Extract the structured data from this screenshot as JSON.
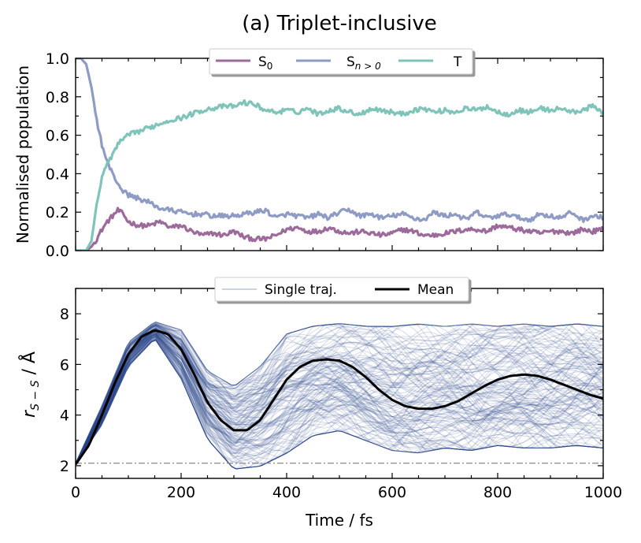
{
  "figure_title": "(a) Triplet-inclusive",
  "xlabel": "Time / fs",
  "chart_data": [
    {
      "type": "line",
      "title": "(a) Triplet-inclusive",
      "ylabel": "Normalised population",
      "xlim": [
        0,
        1000
      ],
      "ylim": [
        0,
        1.0
      ],
      "yticks": [
        0.0,
        0.2,
        0.4,
        0.6,
        0.8,
        1.0
      ],
      "ytick_labels": [
        "0.0",
        "0.2",
        "0.4",
        "0.6",
        "0.8",
        "1.0"
      ],
      "legend_loc": "top-center",
      "series": [
        {
          "name": "S0",
          "label_main": "S",
          "label_sub": "0",
          "color": "#9c6b9c",
          "x": [
            0,
            10,
            20,
            30,
            40,
            50,
            60,
            70,
            80,
            90,
            100,
            120,
            140,
            160,
            180,
            200,
            220,
            240,
            260,
            280,
            300,
            320,
            340,
            360,
            380,
            400,
            420,
            440,
            460,
            480,
            500,
            520,
            540,
            560,
            580,
            600,
            620,
            640,
            660,
            680,
            700,
            720,
            740,
            760,
            780,
            800,
            820,
            840,
            860,
            880,
            900,
            920,
            940,
            960,
            980,
            1000
          ],
          "values": [
            0,
            0,
            0,
            0.02,
            0.06,
            0.11,
            0.15,
            0.18,
            0.21,
            0.19,
            0.15,
            0.13,
            0.13,
            0.15,
            0.12,
            0.13,
            0.1,
            0.08,
            0.09,
            0.08,
            0.1,
            0.07,
            0.06,
            0.06,
            0.08,
            0.11,
            0.12,
            0.1,
            0.1,
            0.12,
            0.1,
            0.09,
            0.1,
            0.09,
            0.08,
            0.09,
            0.11,
            0.1,
            0.08,
            0.08,
            0.09,
            0.1,
            0.11,
            0.11,
            0.1,
            0.13,
            0.12,
            0.11,
            0.1,
            0.09,
            0.1,
            0.1,
            0.09,
            0.11,
            0.1,
            0.11
          ]
        },
        {
          "name": "Sn>0",
          "label_main": "S",
          "label_sub": "n > 0",
          "color": "#8e9bc4",
          "x": [
            0,
            10,
            20,
            30,
            40,
            50,
            60,
            70,
            80,
            90,
            100,
            120,
            140,
            160,
            180,
            200,
            220,
            240,
            260,
            280,
            300,
            320,
            340,
            360,
            380,
            400,
            420,
            440,
            460,
            480,
            500,
            520,
            540,
            560,
            580,
            600,
            620,
            640,
            660,
            680,
            700,
            720,
            740,
            760,
            780,
            800,
            820,
            840,
            860,
            880,
            900,
            920,
            940,
            960,
            980,
            1000
          ],
          "values": [
            1,
            1,
            0.97,
            0.85,
            0.68,
            0.55,
            0.46,
            0.4,
            0.35,
            0.31,
            0.29,
            0.27,
            0.25,
            0.22,
            0.21,
            0.2,
            0.19,
            0.19,
            0.18,
            0.18,
            0.18,
            0.19,
            0.2,
            0.21,
            0.17,
            0.19,
            0.18,
            0.17,
            0.19,
            0.17,
            0.2,
            0.21,
            0.18,
            0.19,
            0.17,
            0.18,
            0.19,
            0.17,
            0.16,
            0.2,
            0.18,
            0.19,
            0.16,
            0.2,
            0.17,
            0.18,
            0.19,
            0.17,
            0.16,
            0.19,
            0.18,
            0.17,
            0.2,
            0.16,
            0.18,
            0.17
          ]
        },
        {
          "name": "T",
          "label_main": "T",
          "label_sub": "",
          "color": "#7fc4b9",
          "x": [
            0,
            10,
            20,
            30,
            40,
            50,
            60,
            70,
            80,
            90,
            100,
            120,
            140,
            160,
            180,
            200,
            220,
            240,
            260,
            280,
            300,
            320,
            340,
            360,
            380,
            400,
            420,
            440,
            460,
            480,
            500,
            520,
            540,
            560,
            580,
            600,
            620,
            640,
            660,
            680,
            700,
            720,
            740,
            760,
            780,
            800,
            820,
            840,
            860,
            880,
            900,
            920,
            940,
            960,
            980,
            1000
          ],
          "values": [
            0,
            0,
            0,
            0.05,
            0.24,
            0.38,
            0.45,
            0.5,
            0.55,
            0.58,
            0.6,
            0.62,
            0.64,
            0.66,
            0.68,
            0.69,
            0.71,
            0.73,
            0.74,
            0.75,
            0.75,
            0.77,
            0.76,
            0.73,
            0.72,
            0.73,
            0.72,
            0.74,
            0.71,
            0.73,
            0.74,
            0.72,
            0.71,
            0.74,
            0.73,
            0.72,
            0.71,
            0.73,
            0.74,
            0.72,
            0.73,
            0.72,
            0.74,
            0.73,
            0.75,
            0.72,
            0.71,
            0.73,
            0.72,
            0.74,
            0.73,
            0.74,
            0.72,
            0.73,
            0.75,
            0.72
          ]
        }
      ]
    },
    {
      "type": "line",
      "ylabel": "r",
      "ylabel_sub": "S − S",
      "ylabel_unit": " / Å",
      "xlim": [
        0,
        1000
      ],
      "ylim": [
        1.5,
        9.0
      ],
      "xticks": [
        0,
        200,
        400,
        600,
        800,
        1000
      ],
      "xtick_labels": [
        "0",
        "200",
        "400",
        "600",
        "800",
        "1000"
      ],
      "yticks": [
        2,
        4,
        6,
        8
      ],
      "ytick_labels": [
        "2",
        "4",
        "6",
        "8"
      ],
      "legend_loc": "top-center",
      "reference_line": {
        "y": 2.1,
        "style": "dash-dot",
        "color": "#888888"
      },
      "series": [
        {
          "name": "Mean",
          "label": "Mean",
          "color": "#000000",
          "x": [
            0,
            25,
            50,
            75,
            100,
            125,
            150,
            175,
            200,
            225,
            250,
            275,
            300,
            325,
            350,
            375,
            400,
            425,
            450,
            475,
            500,
            525,
            550,
            575,
            600,
            625,
            650,
            675,
            700,
            725,
            750,
            775,
            800,
            825,
            850,
            875,
            900,
            925,
            950,
            975,
            1000
          ],
          "values": [
            2.05,
            2.8,
            4.0,
            5.3,
            6.4,
            7.1,
            7.35,
            7.2,
            6.6,
            5.6,
            4.5,
            3.8,
            3.4,
            3.4,
            3.8,
            4.6,
            5.4,
            5.9,
            6.15,
            6.2,
            6.15,
            5.9,
            5.5,
            5.0,
            4.6,
            4.35,
            4.25,
            4.25,
            4.35,
            4.55,
            4.85,
            5.15,
            5.4,
            5.55,
            5.6,
            5.55,
            5.4,
            5.2,
            5.0,
            4.8,
            4.65
          ]
        },
        {
          "name": "Single traj.",
          "label": "Single traj.",
          "color": "#2e4a8a",
          "count_approx": 300,
          "envelope_x": [
            0,
            50,
            100,
            150,
            200,
            250,
            300,
            350,
            400,
            450,
            500,
            550,
            600,
            650,
            700,
            750,
            800,
            850,
            900,
            950,
            1000
          ],
          "envelope_min": [
            2.05,
            3.6,
            5.9,
            7.0,
            5.4,
            3.0,
            1.8,
            1.9,
            2.4,
            3.1,
            3.3,
            2.9,
            2.5,
            2.4,
            2.6,
            2.5,
            2.7,
            2.6,
            2.6,
            2.7,
            2.6
          ],
          "envelope_max": [
            2.1,
            4.4,
            6.9,
            7.7,
            7.4,
            5.8,
            5.2,
            6.0,
            7.3,
            7.6,
            7.7,
            7.6,
            7.6,
            7.7,
            7.6,
            7.7,
            7.6,
            7.7,
            7.6,
            7.7,
            7.6
          ]
        }
      ]
    }
  ]
}
